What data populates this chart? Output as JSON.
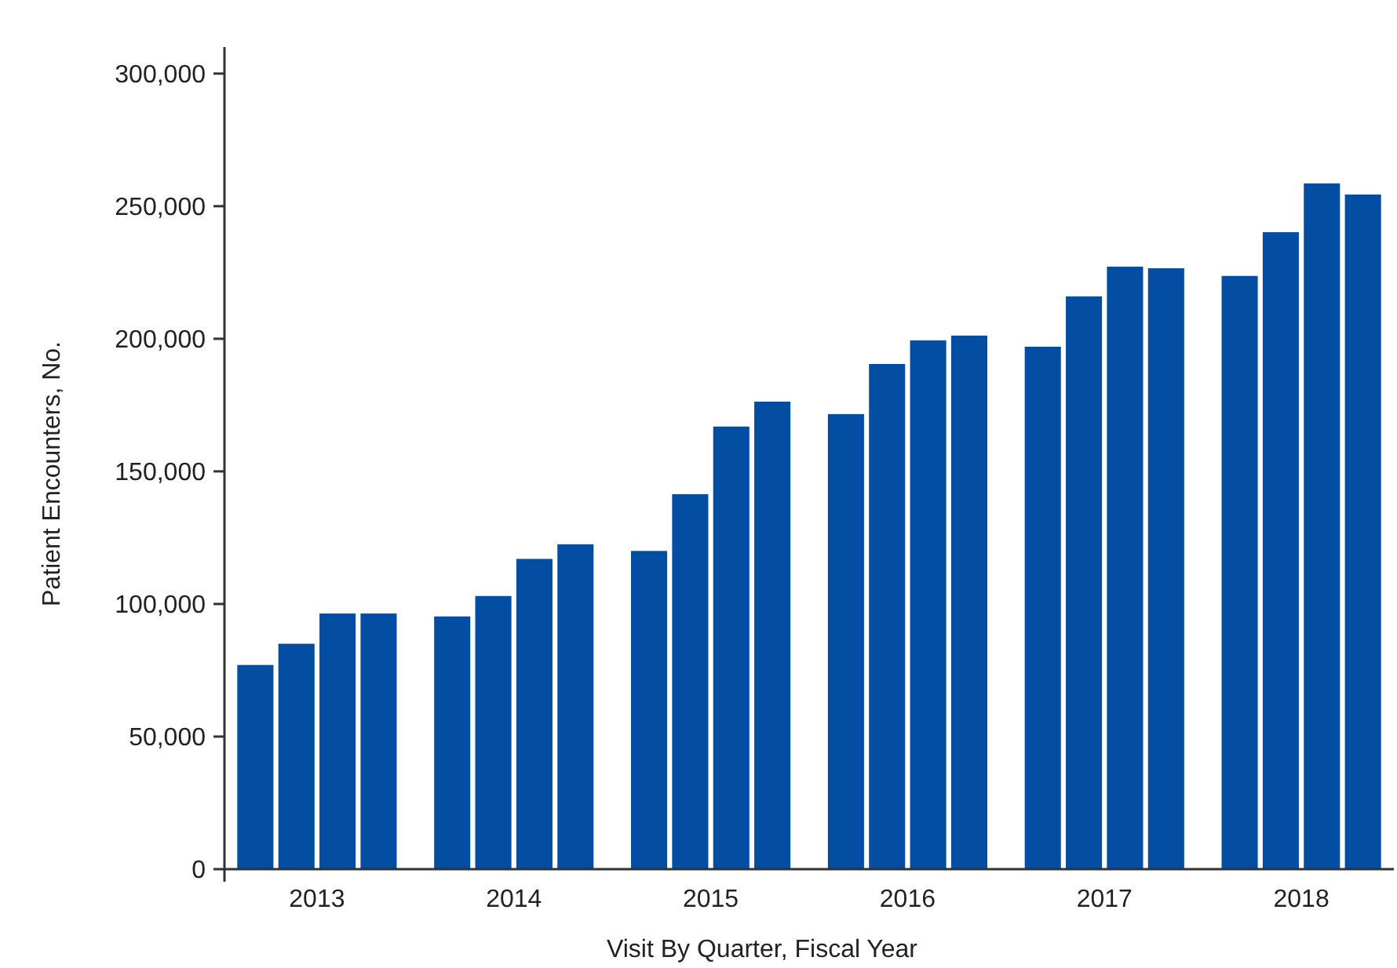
{
  "chart_data": {
    "type": "bar",
    "xlabel": "Visit By Quarter, Fiscal Year",
    "ylabel": "Patient Encounters, No.",
    "categories": [
      "2013",
      "2014",
      "2015",
      "2016",
      "2017",
      "2018"
    ],
    "series": [
      {
        "color": "#034ea2",
        "values": [
          77000,
          95300,
          120000,
          171600,
          197000,
          223700
        ]
      },
      {
        "color": "#034ea2",
        "values": [
          85000,
          103000,
          141400,
          190500,
          216000,
          240200
        ]
      },
      {
        "color": "#034ea2",
        "values": [
          96400,
          117000,
          166900,
          199400,
          227200,
          258600
        ]
      },
      {
        "color": "#034ea2",
        "values": [
          96400,
          122500,
          176300,
          201200,
          226600,
          254400
        ]
      }
    ],
    "ylim": [
      0,
      310000
    ],
    "yticks": [
      {
        "value": 0,
        "label": "0"
      },
      {
        "value": 50000,
        "label": "50,000"
      },
      {
        "value": 100000,
        "label": "100,000"
      },
      {
        "value": 150000,
        "label": "150,000"
      },
      {
        "value": 200000,
        "label": "200,000"
      },
      {
        "value": 250000,
        "label": "250,000"
      },
      {
        "value": 300000,
        "label": "300,000"
      }
    ],
    "grid": false
  }
}
